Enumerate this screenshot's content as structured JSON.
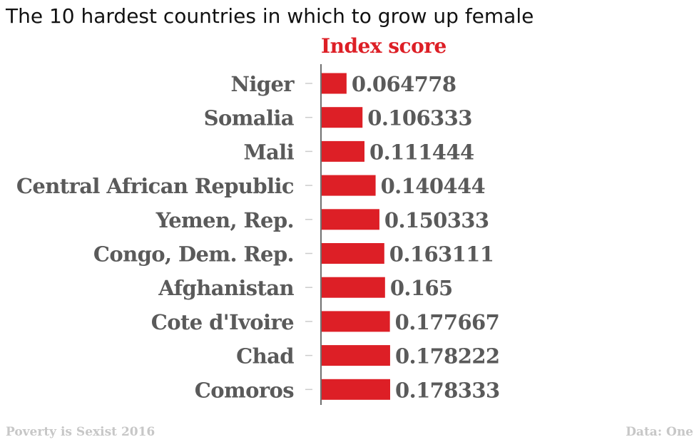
{
  "title": "The 10 hardest countries in which to grow up female",
  "footer": {
    "left": "Poverty is Sexist 2016",
    "right": "Data: One"
  },
  "colors": {
    "bar": "#dd1f26",
    "header": "#dd1f26",
    "label": "#5a5a5a",
    "axis": "#111111",
    "tick": "#cccccc"
  },
  "chart_data": {
    "type": "bar",
    "orientation": "horizontal",
    "series_header": "Index score",
    "categories": [
      "Niger",
      "Somalia",
      "Mali",
      "Central African Republic",
      "Yemen, Rep.",
      "Congo, Dem. Rep.",
      "Afghanistan",
      "Cote d'Ivoire",
      "Chad",
      "Comoros"
    ],
    "values": [
      0.064778,
      0.106333,
      0.111444,
      0.140444,
      0.150333,
      0.163111,
      0.165,
      0.177667,
      0.178222,
      0.178333
    ],
    "value_labels": [
      "0.064778",
      "0.106333",
      "0.111444",
      "0.140444",
      "0.150333",
      "0.163111",
      "0.165",
      "0.177667",
      "0.178222",
      "0.178333"
    ],
    "xlim": [
      0,
      0.178333
    ],
    "grid": false,
    "legend": "none"
  }
}
